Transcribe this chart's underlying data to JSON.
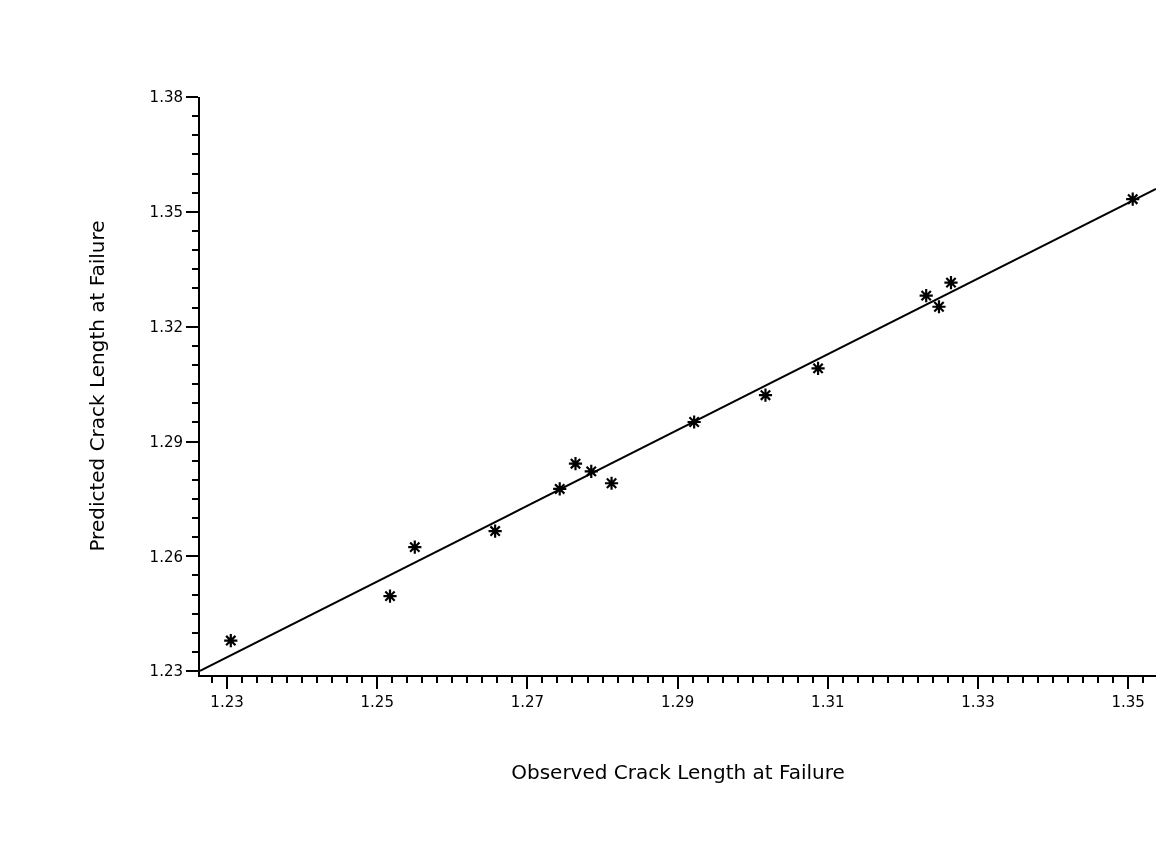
{
  "chart_data": {
    "type": "scatter",
    "xlabel": "Observed Crack Length at Failure",
    "ylabel": "Predicted Crack Length at Failure",
    "xlim": [
      1.2264,
      1.3537
    ],
    "ylim": [
      1.229,
      1.38
    ],
    "xticks": [
      1.23,
      1.25,
      1.27,
      1.29,
      1.31,
      1.33,
      1.35
    ],
    "yticks": [
      1.23,
      1.26,
      1.29,
      1.32,
      1.35,
      1.38
    ],
    "series": [
      {
        "marker": "cross",
        "color": "#000000",
        "x": [
          1.2305,
          1.2517,
          1.255,
          1.2657,
          1.2743,
          1.2764,
          1.2785,
          1.2812,
          1.2922,
          1.3017,
          1.3087,
          1.3231,
          1.3248,
          1.3264,
          1.3506
        ],
        "values": [
          1.238,
          1.2496,
          1.2624,
          1.2666,
          1.2776,
          1.2842,
          1.2822,
          1.2791,
          1.2951,
          1.3021,
          1.3091,
          1.3281,
          1.3252,
          1.3315,
          1.3533
        ]
      },
      {
        "type": "line",
        "marker": "none",
        "line_style": "solid",
        "color": "#000000",
        "x": [
          1.2264,
          1.3537
        ],
        "values": [
          1.2301,
          1.356
        ]
      }
    ]
  }
}
